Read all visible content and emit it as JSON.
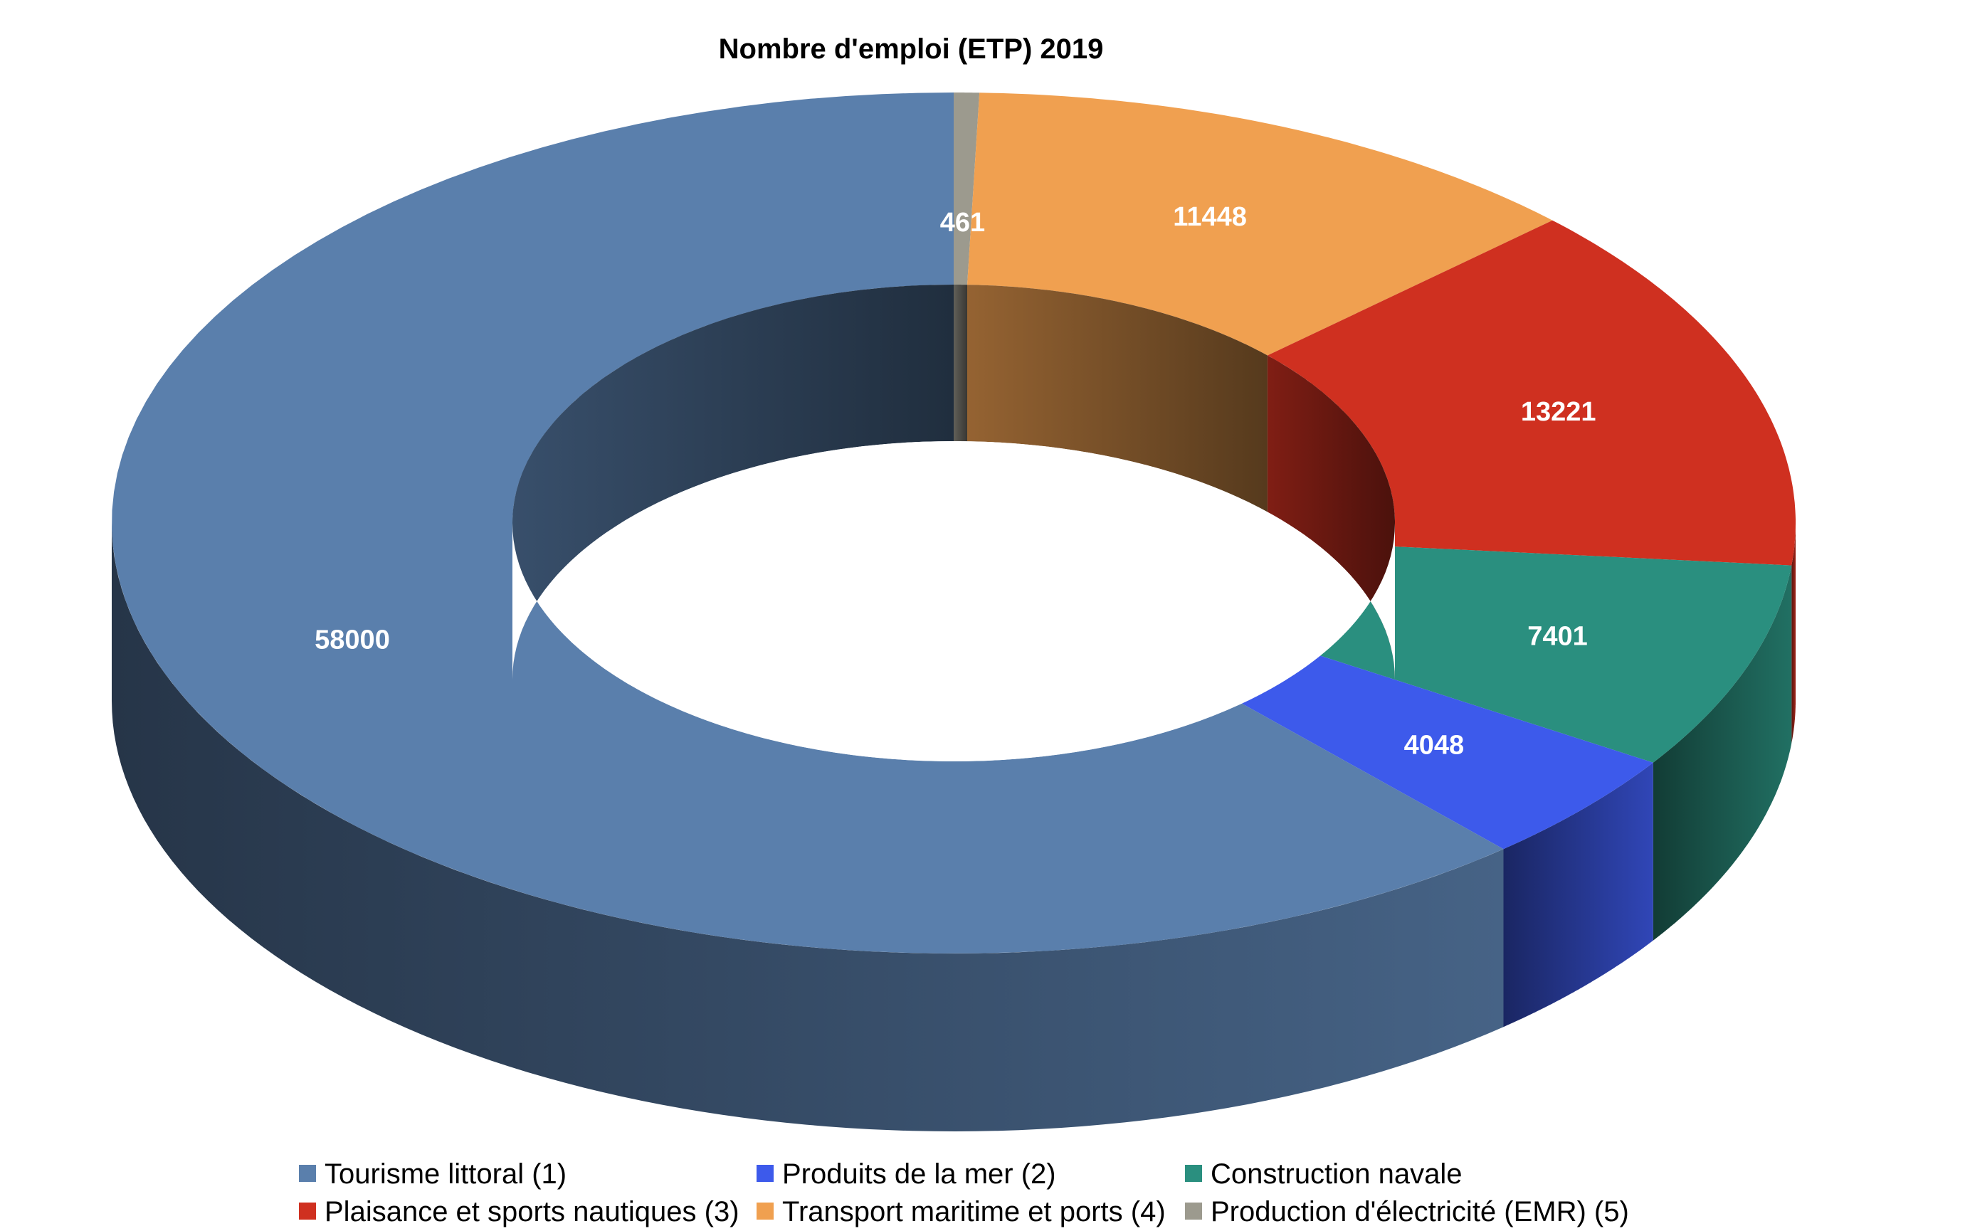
{
  "chart_data": {
    "type": "pie",
    "variant": "3d-donut",
    "title": "Nombre d'emploi (ETP) 2019",
    "start_angle_note": "clockwise from top",
    "categories": [
      "Production d'électricité (EMR) (5)",
      "Transport maritime et ports (4)",
      "Plaisance et sports nautiques (3)",
      "Construction navale",
      "Produits de la mer (2)",
      "Tourisme littoral (1)"
    ],
    "values": [
      461,
      11448,
      13221,
      7401,
      4048,
      58000
    ],
    "data_labels": [
      "461",
      "11448",
      "13221",
      "7401",
      "4048",
      "58000"
    ],
    "colors": [
      "#9c9a8e",
      "#f0a050",
      "#cf3020",
      "#2a8f7f",
      "#3d5aeb",
      "#5a7fac"
    ],
    "legend": {
      "placement": "bottom",
      "entries": [
        {
          "label": "Tourisme littoral (1)",
          "color": "#5a7fac"
        },
        {
          "label": "Produits de la mer (2)",
          "color": "#3d5aeb"
        },
        {
          "label": "Construction navale",
          "color": "#2a8f7f"
        },
        {
          "label": "Plaisance et sports nautiques (3)",
          "color": "#cf3020"
        },
        {
          "label": "Transport maritime et ports (4)",
          "color": "#f0a050"
        },
        {
          "label": "Production d'électricité (EMR) (5)",
          "color": "#9c9a8e"
        }
      ]
    }
  }
}
